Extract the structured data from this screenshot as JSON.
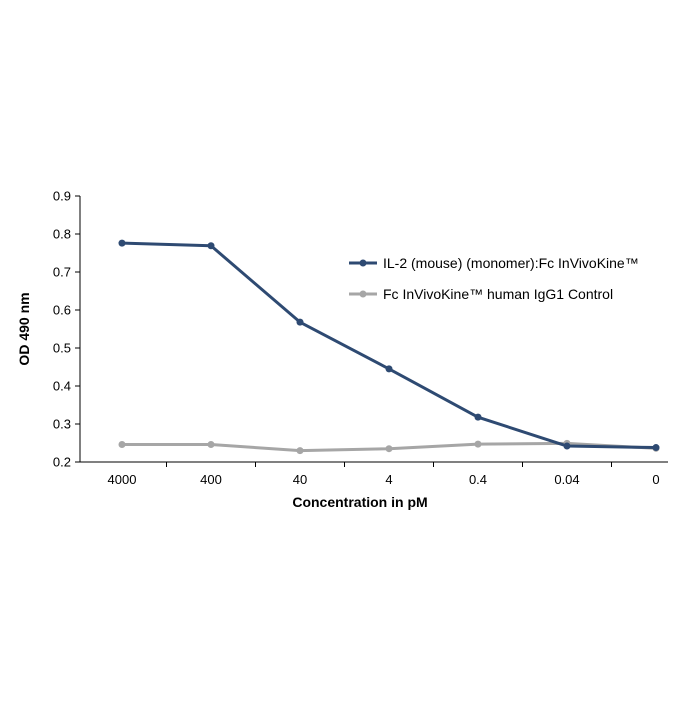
{
  "chart_data": {
    "type": "line",
    "title": "",
    "xlabel": "Concentration in pM",
    "ylabel": "OD  490 nm",
    "categories": [
      "4000",
      "400",
      "40",
      "4",
      "0.4",
      "0.04",
      "0"
    ],
    "ylim": [
      0.2,
      0.9
    ],
    "yticks": [
      "0.2",
      "0.3",
      "0.4",
      "0.5",
      "0.6",
      "0.7",
      "0.8",
      "0.9"
    ],
    "grid": false,
    "legend_position": "right",
    "series": [
      {
        "name": "IL-2 (mouse) (monomer):Fc InVivoKine™",
        "color": "#2e4a72",
        "values": [
          0.776,
          0.769,
          0.568,
          0.445,
          0.318,
          0.242,
          0.238
        ]
      },
      {
        "name": "Fc InVivoKine™ human IgG1 Control",
        "color": "#a6a6a6",
        "values": [
          0.246,
          0.246,
          0.23,
          0.235,
          0.247,
          0.249,
          0.236
        ]
      }
    ]
  }
}
